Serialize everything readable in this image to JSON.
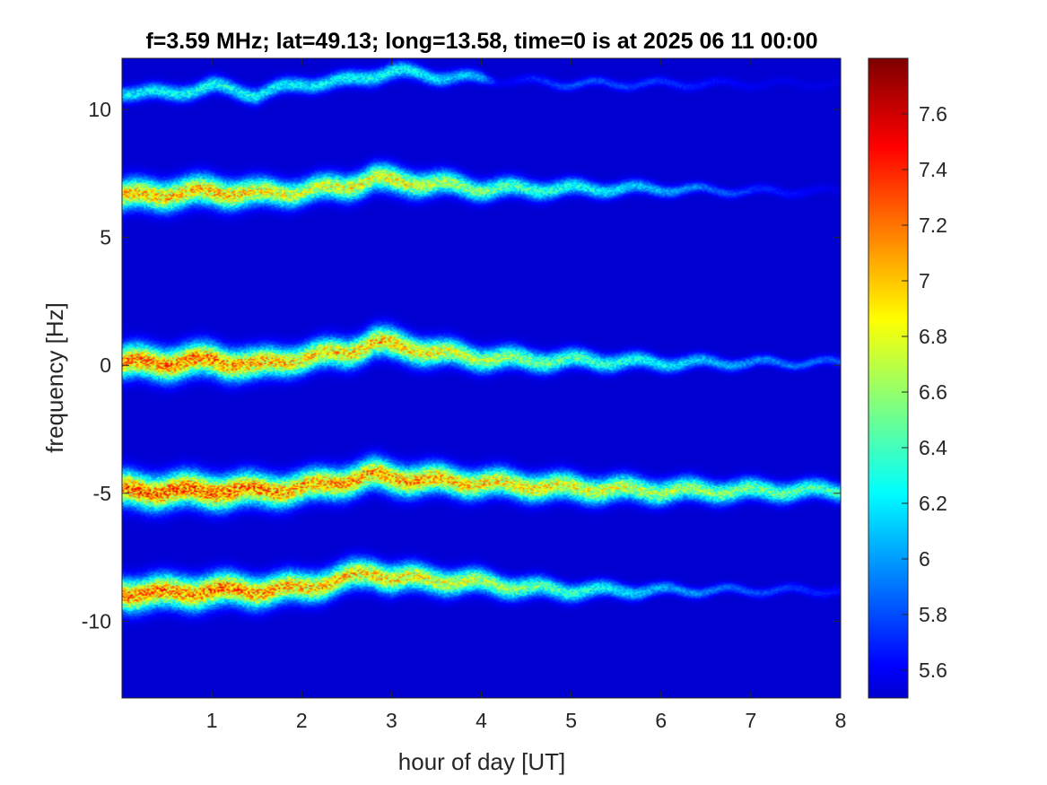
{
  "chart_data": {
    "type": "heatmap",
    "title": "f=3.59 MHz;  lat=49.13; long=13.58, time=0 is at 2025 06 11 00:00",
    "xlabel": "hour of day [UT]",
    "ylabel": "frequency [Hz]",
    "xlim": [
      0,
      8
    ],
    "ylim": [
      -13,
      12
    ],
    "x_ticks": [
      1,
      2,
      3,
      4,
      5,
      6,
      7,
      8
    ],
    "y_ticks": [
      10,
      5,
      0,
      -5,
      -10
    ],
    "colormap": "jet",
    "clim": [
      5.5,
      7.8
    ],
    "colorbar_ticks": [
      7.6,
      7.4,
      7.2,
      7,
      6.8,
      6.6,
      6.4,
      6.2,
      6,
      5.8,
      5.6
    ],
    "background_value": 5.5,
    "grid": false,
    "bands": [
      {
        "center_hz": [
          [
            0.0,
            10.7
          ],
          [
            0.5,
            10.6
          ],
          [
            1.0,
            10.9
          ],
          [
            1.5,
            10.6
          ],
          [
            2.0,
            11.0
          ],
          [
            2.5,
            11.1
          ],
          [
            3.0,
            11.5
          ],
          [
            3.5,
            11.3
          ],
          [
            4.0,
            11.2
          ],
          [
            5.0,
            11.0
          ],
          [
            6.0,
            11.0
          ],
          [
            7.0,
            11.0
          ],
          [
            8.0,
            11.0
          ]
        ],
        "peak_value": [
          [
            0.0,
            6.4
          ],
          [
            1.0,
            6.5
          ],
          [
            2.0,
            6.4
          ],
          [
            3.0,
            6.5
          ],
          [
            4.0,
            6.2
          ],
          [
            4.2,
            5.6
          ],
          [
            5.0,
            5.9
          ],
          [
            6.0,
            5.8
          ],
          [
            7.0,
            5.6
          ],
          [
            8.0,
            5.55
          ]
        ]
      },
      {
        "center_hz": [
          [
            0.0,
            6.6
          ],
          [
            0.5,
            6.7
          ],
          [
            1.0,
            6.8
          ],
          [
            1.5,
            6.7
          ],
          [
            2.0,
            6.8
          ],
          [
            2.5,
            7.0
          ],
          [
            2.8,
            7.3
          ],
          [
            3.0,
            7.2
          ],
          [
            3.5,
            7.1
          ],
          [
            4.0,
            6.9
          ],
          [
            4.5,
            6.9
          ],
          [
            5.0,
            6.9
          ],
          [
            6.0,
            6.9
          ],
          [
            7.0,
            6.8
          ],
          [
            8.0,
            6.8
          ]
        ],
        "peak_value": [
          [
            0.0,
            7.4
          ],
          [
            1.0,
            7.4
          ],
          [
            2.0,
            7.1
          ],
          [
            3.0,
            7.2
          ],
          [
            4.0,
            6.8
          ],
          [
            5.0,
            6.5
          ],
          [
            6.0,
            6.2
          ],
          [
            7.0,
            5.8
          ],
          [
            8.0,
            5.55
          ]
        ]
      },
      {
        "center_hz": [
          [
            0.0,
            0.1
          ],
          [
            0.5,
            0.1
          ],
          [
            1.0,
            0.2
          ],
          [
            1.5,
            0.0
          ],
          [
            2.0,
            0.3
          ],
          [
            2.5,
            0.5
          ],
          [
            2.8,
            0.9
          ],
          [
            3.0,
            0.8
          ],
          [
            3.5,
            0.5
          ],
          [
            4.0,
            0.3
          ],
          [
            4.5,
            0.2
          ],
          [
            5.0,
            0.2
          ],
          [
            6.0,
            0.1
          ],
          [
            7.0,
            0.1
          ],
          [
            8.0,
            0.1
          ]
        ],
        "peak_value": [
          [
            0.0,
            7.6
          ],
          [
            1.0,
            7.6
          ],
          [
            2.0,
            7.3
          ],
          [
            3.0,
            7.4
          ],
          [
            4.0,
            7.0
          ],
          [
            5.0,
            6.7
          ],
          [
            6.0,
            6.4
          ],
          [
            7.0,
            6.1
          ],
          [
            8.0,
            5.9
          ]
        ]
      },
      {
        "center_hz": [
          [
            0.0,
            -4.9
          ],
          [
            0.5,
            -4.9
          ],
          [
            1.0,
            -4.9
          ],
          [
            1.5,
            -4.9
          ],
          [
            2.0,
            -4.8
          ],
          [
            2.5,
            -4.5
          ],
          [
            2.8,
            -4.3
          ],
          [
            3.0,
            -4.4
          ],
          [
            3.5,
            -4.5
          ],
          [
            4.0,
            -4.6
          ],
          [
            4.5,
            -4.7
          ],
          [
            5.0,
            -4.8
          ],
          [
            6.0,
            -4.9
          ],
          [
            7.0,
            -4.9
          ],
          [
            8.0,
            -4.9
          ]
        ],
        "peak_value": [
          [
            0.0,
            7.7
          ],
          [
            1.0,
            7.7
          ],
          [
            2.0,
            7.5
          ],
          [
            3.0,
            7.5
          ],
          [
            4.0,
            7.3
          ],
          [
            5.0,
            7.2
          ],
          [
            6.0,
            7.0
          ],
          [
            7.0,
            6.8
          ],
          [
            8.0,
            6.6
          ]
        ]
      },
      {
        "center_hz": [
          [
            0.0,
            -8.9
          ],
          [
            0.5,
            -8.9
          ],
          [
            1.0,
            -8.8
          ],
          [
            1.5,
            -8.8
          ],
          [
            2.0,
            -8.7
          ],
          [
            2.5,
            -8.3
          ],
          [
            2.8,
            -8.1
          ],
          [
            3.0,
            -8.3
          ],
          [
            3.5,
            -8.4
          ],
          [
            4.0,
            -8.5
          ],
          [
            4.5,
            -8.7
          ],
          [
            5.0,
            -8.8
          ],
          [
            6.0,
            -8.8
          ],
          [
            7.0,
            -8.8
          ],
          [
            8.0,
            -8.8
          ]
        ],
        "peak_value": [
          [
            0.0,
            7.6
          ],
          [
            1.0,
            7.6
          ],
          [
            2.0,
            7.4
          ],
          [
            3.0,
            7.3
          ],
          [
            4.0,
            7.0
          ],
          [
            5.0,
            6.6
          ],
          [
            6.0,
            6.2
          ],
          [
            7.0,
            5.9
          ],
          [
            8.0,
            5.7
          ]
        ]
      }
    ]
  }
}
